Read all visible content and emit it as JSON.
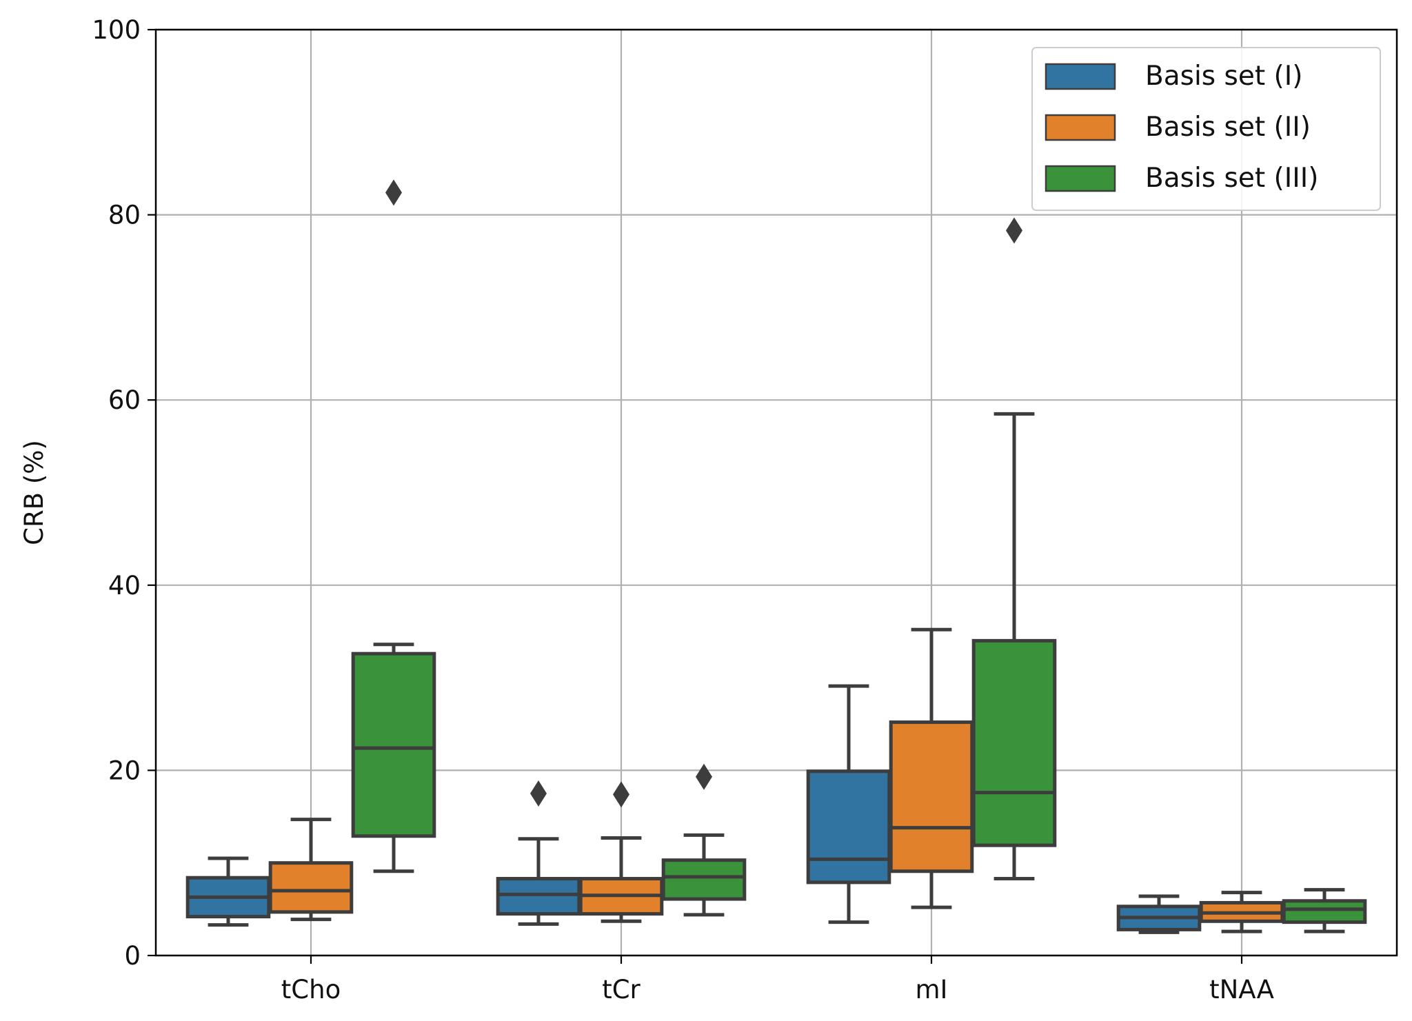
{
  "chart_data": {
    "type": "box",
    "title": "",
    "xlabel": "",
    "ylabel": "CRB (%)",
    "ylim": [
      0,
      100
    ],
    "yticks": [
      0,
      20,
      40,
      60,
      80,
      100
    ],
    "grid": true,
    "legend_position": "top-right",
    "categories": [
      "tCho",
      "tCr",
      "mI",
      "tNAA"
    ],
    "series": [
      {
        "name": "Basis set (I)",
        "color": "#3274a1",
        "boxes": [
          {
            "whislo": 3.3,
            "q1": 4.2,
            "med": 6.3,
            "q3": 8.4,
            "whishi": 10.5,
            "fliers": []
          },
          {
            "whislo": 3.4,
            "q1": 4.5,
            "med": 6.6,
            "q3": 8.3,
            "whishi": 12.6,
            "fliers": [
              17.5
            ]
          },
          {
            "whislo": 3.6,
            "q1": 7.9,
            "med": 10.4,
            "q3": 19.9,
            "whishi": 29.1,
            "fliers": []
          },
          {
            "whislo": 2.5,
            "q1": 2.8,
            "med": 4.1,
            "q3": 5.3,
            "whishi": 6.4,
            "fliers": []
          }
        ]
      },
      {
        "name": "Basis set (II)",
        "color": "#e1812c",
        "boxes": [
          {
            "whislo": 3.9,
            "q1": 4.7,
            "med": 7.0,
            "q3": 10.0,
            "whishi": 14.7,
            "fliers": []
          },
          {
            "whislo": 3.7,
            "q1": 4.5,
            "med": 6.5,
            "q3": 8.3,
            "whishi": 12.7,
            "fliers": [
              17.4
            ]
          },
          {
            "whislo": 5.2,
            "q1": 9.1,
            "med": 13.8,
            "q3": 25.2,
            "whishi": 35.2,
            "fliers": []
          },
          {
            "whislo": 2.6,
            "q1": 3.7,
            "med": 4.6,
            "q3": 5.7,
            "whishi": 6.8,
            "fliers": []
          }
        ]
      },
      {
        "name": "Basis set (III)",
        "color": "#3a923a",
        "boxes": [
          {
            "whislo": 9.1,
            "q1": 12.9,
            "med": 22.4,
            "q3": 32.6,
            "whishi": 33.6,
            "fliers": [
              82.4
            ]
          },
          {
            "whislo": 4.4,
            "q1": 6.1,
            "med": 8.5,
            "q3": 10.3,
            "whishi": 13.0,
            "fliers": [
              19.3
            ]
          },
          {
            "whislo": 8.3,
            "q1": 11.9,
            "med": 17.6,
            "q3": 34.0,
            "whishi": 58.5,
            "fliers": [
              78.3
            ]
          },
          {
            "whislo": 2.6,
            "q1": 3.6,
            "med": 5.0,
            "q3": 5.9,
            "whishi": 7.1,
            "fliers": []
          }
        ]
      }
    ]
  }
}
